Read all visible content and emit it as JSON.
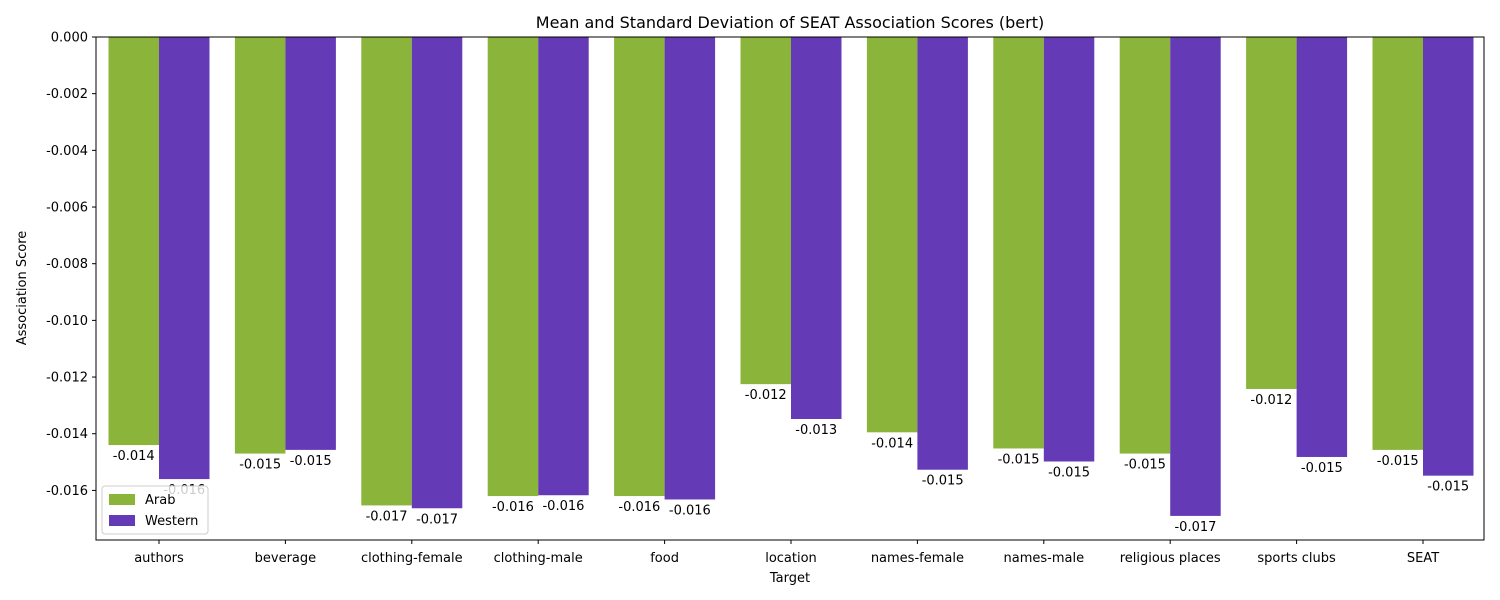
{
  "chart_data": {
    "type": "bar",
    "title": "Mean and Standard Deviation of SEAT Association Scores (bert)",
    "xlabel": "Target",
    "ylabel": "Association Score",
    "categories": [
      "authors",
      "beverage",
      "clothing-female",
      "clothing-male",
      "food",
      "location",
      "names-female",
      "names-male",
      "religious places",
      "sports clubs",
      "SEAT"
    ],
    "series": [
      {
        "name": "Arab",
        "color": "#8bb43a",
        "values": [
          -0.0144,
          -0.0147,
          -0.01653,
          -0.0162,
          -0.0162,
          -0.01225,
          -0.01395,
          -0.01452,
          -0.0147,
          -0.01242,
          -0.01457
        ],
        "labels": [
          "-0.014",
          "-0.015",
          "-0.017",
          "-0.016",
          "-0.016",
          "-0.012",
          "-0.014",
          "-0.015",
          "-0.015",
          "-0.012",
          "-0.015"
        ]
      },
      {
        "name": "Western",
        "color": "#653ab6",
        "values": [
          -0.0156,
          -0.01457,
          -0.01663,
          -0.01617,
          -0.01632,
          -0.01348,
          -0.01527,
          -0.01498,
          -0.0169,
          -0.01482,
          -0.01548
        ],
        "labels": [
          "-0.016",
          "-0.015",
          "-0.017",
          "-0.016",
          "-0.016",
          "-0.013",
          "-0.015",
          "-0.015",
          "-0.017",
          "-0.015",
          "-0.015"
        ]
      }
    ],
    "yticks": [
      0.0,
      -0.002,
      -0.004,
      -0.006,
      -0.008,
      -0.01,
      -0.012,
      -0.014,
      -0.016
    ],
    "ytick_labels": [
      "0.000",
      "-0.002",
      "-0.004",
      "-0.006",
      "-0.008",
      "-0.010",
      "-0.012",
      "-0.014",
      "-0.016"
    ],
    "ylim": [
      -0.01775,
      0.0
    ],
    "grid": false,
    "legend_position": "bottom-left"
  }
}
